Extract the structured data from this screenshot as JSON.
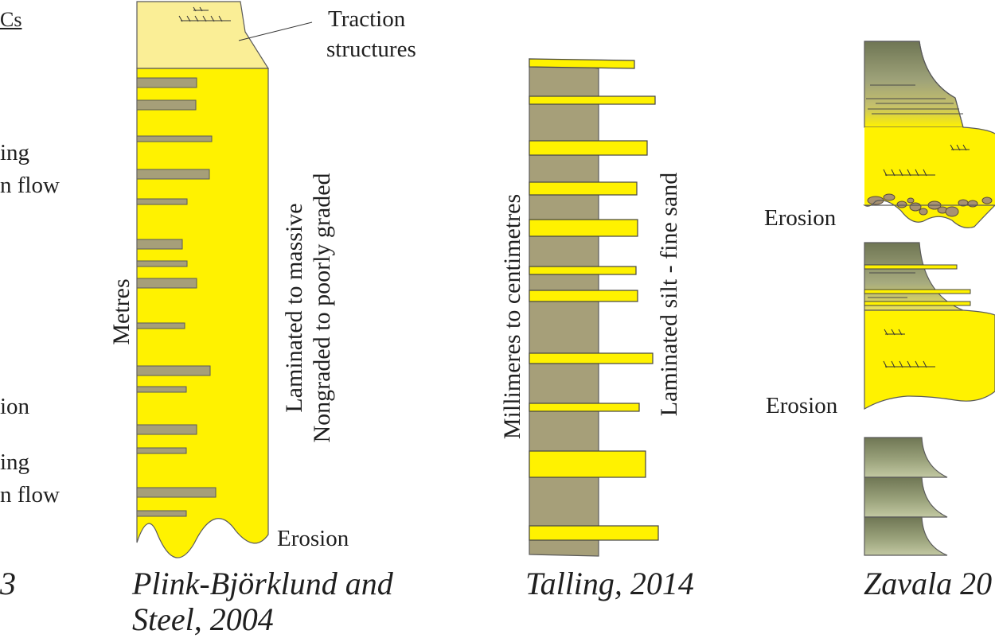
{
  "left_panel": {
    "header_fragment": "Cs",
    "text_fragments": [
      "ing",
      "n flow",
      "ion",
      "ing",
      "n flow"
    ],
    "citation_fragment": "3"
  },
  "panel_plink": {
    "top_label_line1": "Traction",
    "top_label_line2": "structures",
    "scale_label": "Metres",
    "description_line1": "Laminated to massive",
    "description_line2": "Nongraded to poorly graded",
    "base_label": "Erosion",
    "citation_line1": "Plink-Björklund and",
    "citation_line2": "Steel, 2004",
    "colors": {
      "sand": "#fff200",
      "silt": "#a69f79",
      "cap": "#faee96"
    }
  },
  "panel_talling": {
    "scale_label": "Millimeres to centimetres",
    "description": "Laminated silt -  fine sand",
    "citation": "Talling, 2014"
  },
  "panel_zavala": {
    "erosion_label_upper": "Erosion",
    "erosion_label_lower": "Erosion",
    "citation_fragment": "Zavala 20"
  }
}
